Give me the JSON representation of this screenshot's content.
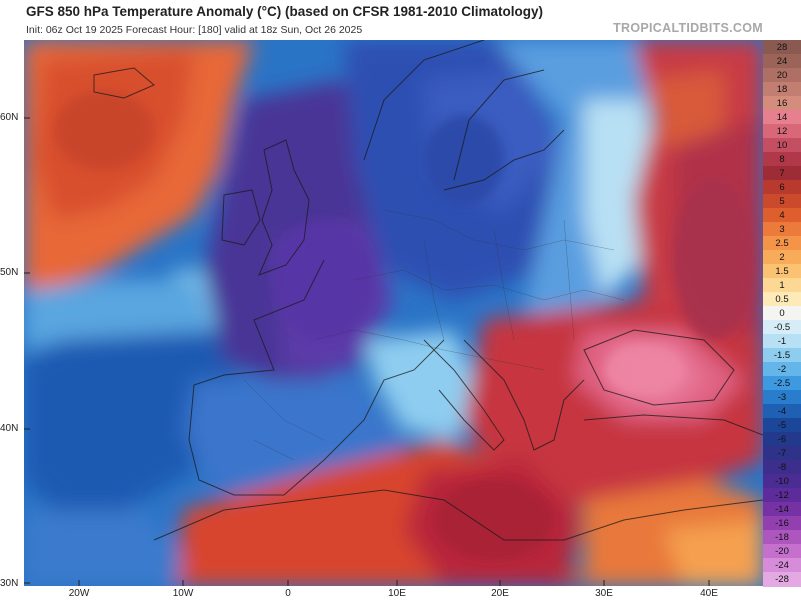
{
  "header": {
    "title": "GFS 850 hPa Temperature Anomaly (°C) (based on CFSR 1981-2010 Climatology)",
    "subtitle": "Init: 06z Oct 19 2025   Forecast Hour: [180]   valid at 18z Sun, Oct 26 2025",
    "brand": "TROPICALTIDBITS.COM"
  },
  "axes": {
    "lat_labels": [
      "60N",
      "50N",
      "40N",
      "30N"
    ],
    "lon_labels": [
      "20W",
      "10W",
      "0",
      "10E",
      "20E",
      "30E",
      "40E"
    ]
  },
  "colorbar": {
    "labels": [
      "28",
      "24",
      "20",
      "18",
      "16",
      "14",
      "12",
      "10",
      "8",
      "7",
      "6",
      "5",
      "4",
      "3",
      "2.5",
      "2",
      "1.5",
      "1",
      "0.5",
      "0",
      "-0.5",
      "-1",
      "-1.5",
      "-2",
      "-2.5",
      "-3",
      "-4",
      "-5",
      "-6",
      "-7",
      "-8",
      "-10",
      "-12",
      "-14",
      "-16",
      "-18",
      "-20",
      "-24",
      "-28"
    ],
    "colors": [
      "#8a5a50",
      "#9c6458",
      "#ae7064",
      "#c27e70",
      "#d48c7c",
      "#e6808e",
      "#d86878",
      "#c44e62",
      "#b03848",
      "#9e2c36",
      "#b83a2e",
      "#cc4a2c",
      "#de5e2e",
      "#ec7a3a",
      "#f49448",
      "#f8ac5a",
      "#fbc274",
      "#fdd894",
      "#feeab8",
      "#f4f4f0",
      "#d6ecf6",
      "#b8e0f4",
      "#8ecdf0",
      "#64b6ea",
      "#3e9ae0",
      "#2a7ccc",
      "#1f5fb4",
      "#1c4698",
      "#233a8c",
      "#2e3288",
      "#3b2e8c",
      "#4a2c92",
      "#5c2c9a",
      "#7632a4",
      "#9240b0",
      "#ac56be",
      "#c470cc",
      "#d68cd8",
      "#e4a8e2"
    ]
  }
}
